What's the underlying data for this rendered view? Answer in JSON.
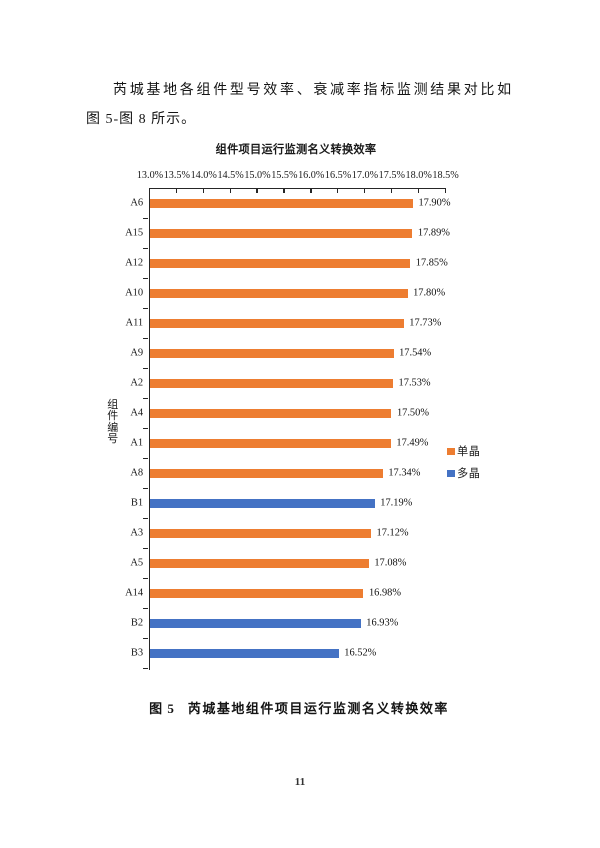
{
  "page": {
    "number": "11",
    "background_color": "#ffffff"
  },
  "document": {
    "paragraph": {
      "line1": "芮城基地各组件型号效率、衰减率指标监测结果对比如",
      "line2": "图 5-图 8 所示。"
    }
  },
  "caption": {
    "label": "图 5",
    "text": "芮城基地组件项目运行监测名义转换效率"
  },
  "chart_data": {
    "type": "bar",
    "orientation": "horizontal",
    "title": "组件项目运行监测名义转换效率",
    "xlabel": "",
    "ylabel": "组件编号",
    "xlim": [
      13.0,
      18.5
    ],
    "x_tick_step": 0.5,
    "x_tick_labels": [
      "13.0%",
      "13.5%",
      "14.0%",
      "14.5%",
      "15.0%",
      "15.5%",
      "16.0%",
      "16.5%",
      "17.0%",
      "17.5%",
      "18.0%",
      "18.5%"
    ],
    "grid": false,
    "categories": [
      "A6",
      "A15",
      "A12",
      "A10",
      "A11",
      "A9",
      "A2",
      "A4",
      "A1",
      "A8",
      "B1",
      "A3",
      "A5",
      "A14",
      "B2",
      "B3"
    ],
    "values": [
      17.9,
      17.89,
      17.85,
      17.8,
      17.73,
      17.54,
      17.53,
      17.5,
      17.49,
      17.34,
      17.19,
      17.12,
      17.08,
      16.98,
      16.93,
      16.52
    ],
    "value_labels": [
      "17.90%",
      "17.89%",
      "17.85%",
      "17.80%",
      "17.73%",
      "17.54%",
      "17.53%",
      "17.50%",
      "17.49%",
      "17.34%",
      "17.19%",
      "17.12%",
      "17.08%",
      "16.98%",
      "16.93%",
      "16.52%"
    ],
    "series_of_category": [
      "单晶",
      "单晶",
      "单晶",
      "单晶",
      "单晶",
      "单晶",
      "单晶",
      "单晶",
      "单晶",
      "单晶",
      "多晶",
      "单晶",
      "单晶",
      "单晶",
      "多晶",
      "多晶"
    ],
    "series_colors": {
      "单晶": "#ED7D31",
      "多晶": "#4472C4"
    },
    "legend": [
      {
        "label": "单晶",
        "color": "#ED7D31"
      },
      {
        "label": "多晶",
        "color": "#4472C4"
      }
    ],
    "legend_position": "right",
    "axis_color": "#2d2d2d"
  }
}
